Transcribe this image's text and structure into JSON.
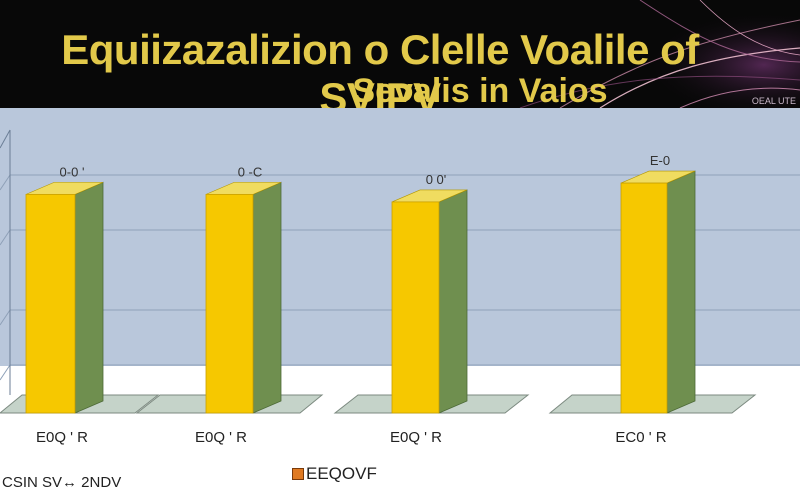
{
  "title_line1": "Equiizazalizion o Clelle Voalile of SVIPV",
  "title_line2": "Sevalis in Vaios",
  "corner_tag": "OEAL UTE",
  "footer_left": "CSIN SV↔ 2NDV",
  "legend": {
    "label": "EEQOVF",
    "color": "#e07a22"
  },
  "chart_data": {
    "type": "bar",
    "categories": [
      "E0Q ' R",
      "E0Q ' R",
      "E0Q ' R",
      "EC0 ' R"
    ],
    "values": [
      232,
      232,
      224,
      244
    ],
    "data_labels": [
      "0-0 '",
      "0 -C",
      "0 0'",
      "E-0"
    ],
    "ylim": [
      0,
      260
    ],
    "grid": true,
    "colors": {
      "front": "#f6c800",
      "side": "#6f8f4f",
      "floor": "#c5d3c9",
      "floor_edge": "#7c8a80"
    }
  }
}
